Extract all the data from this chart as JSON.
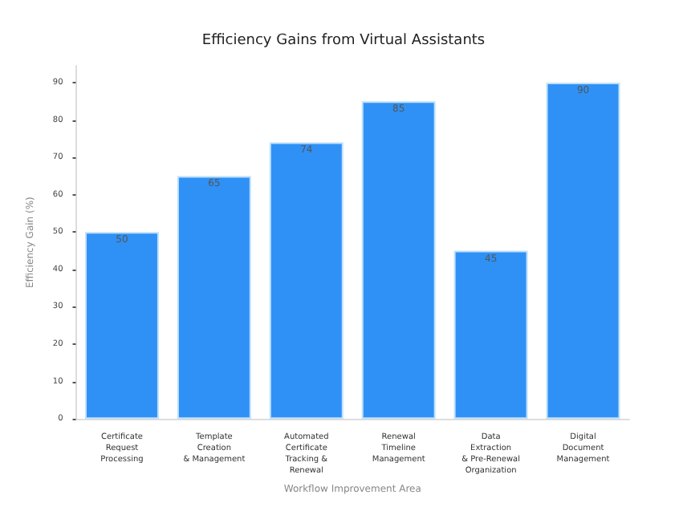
{
  "chart_data": {
    "type": "bar",
    "title": "Efficiency Gains from Virtual Assistants",
    "xlabel": "Workflow Improvement Area",
    "ylabel": "Efficiency Gain (%)",
    "categories": [
      "Certificate\nRequest\nProcessing",
      "Template\nCreation\n& Management",
      "Automated\nCertificate\nTracking &\nRenewal",
      "Renewal\nTimeline\nManagement",
      "Data\nExtraction\n& Pre-Renewal\nOrganization",
      "Digital\nDocument\nManagement"
    ],
    "values": [
      50,
      65,
      74,
      85,
      45,
      90
    ],
    "color": "#2f91f5",
    "ylim": [
      0,
      94.5
    ],
    "yticks": [
      0,
      10,
      20,
      30,
      40,
      50,
      60,
      70,
      80,
      90
    ],
    "data_labels": true,
    "grid": false
  }
}
